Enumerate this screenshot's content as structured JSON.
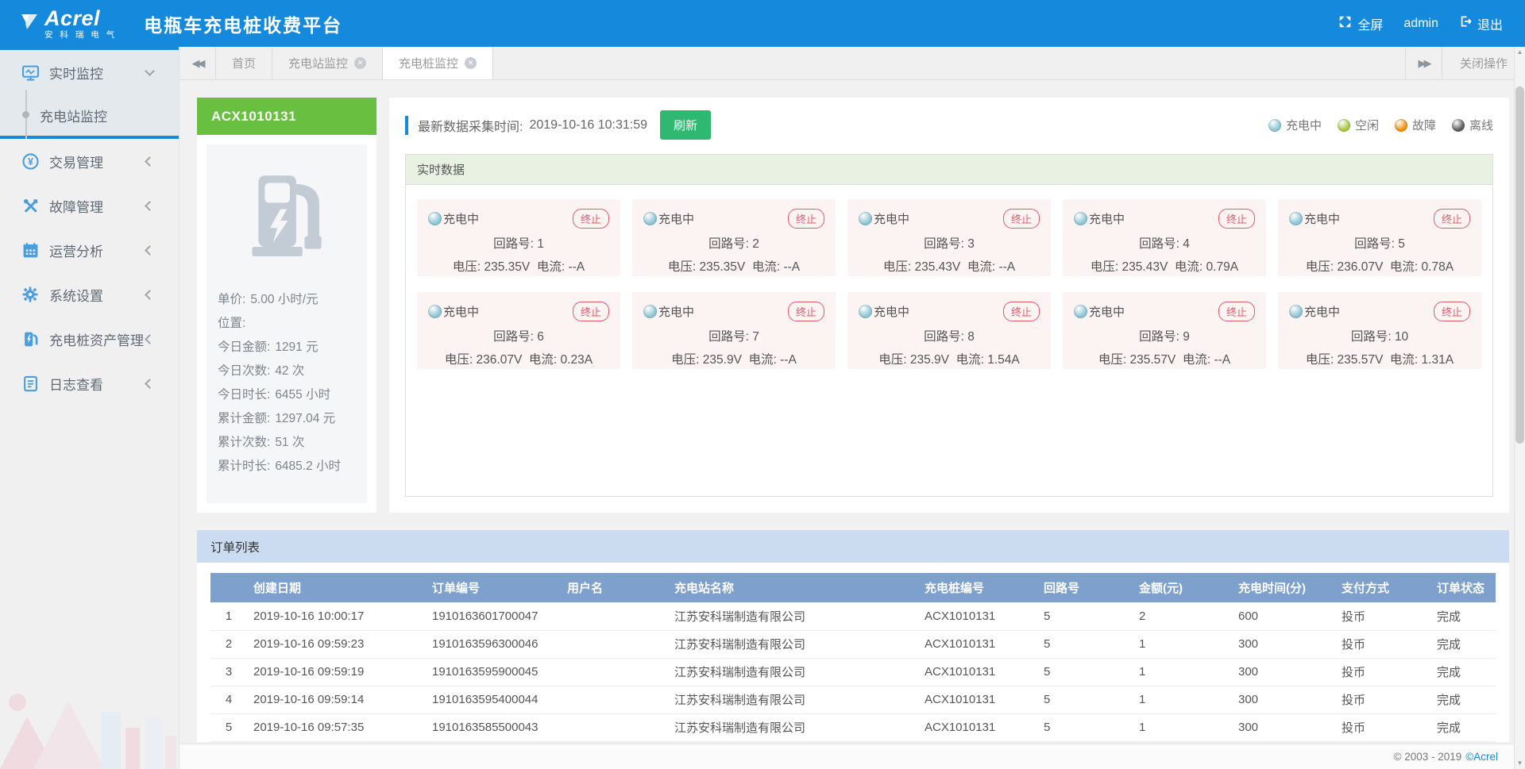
{
  "header": {
    "logo_main": "Acrel",
    "logo_sub": "安 科 瑞 电 气",
    "title": "电瓶车充电桩收费平台",
    "fullscreen_label": "全屏",
    "username": "admin",
    "logout_label": "退出"
  },
  "tabbar": {
    "tabs": [
      {
        "label": "首页",
        "closable": false,
        "active": false
      },
      {
        "label": "充电站监控",
        "closable": true,
        "active": false
      },
      {
        "label": "充电桩监控",
        "closable": true,
        "active": true
      }
    ],
    "close_ops_label": "关闭操作"
  },
  "sidebar": {
    "items": [
      {
        "label": "实时监控",
        "icon": "monitor-icon",
        "expanded": true,
        "children": [
          {
            "label": "充电站监控",
            "active": true
          }
        ]
      },
      {
        "label": "交易管理",
        "icon": "transaction-icon"
      },
      {
        "label": "故障管理",
        "icon": "fault-icon"
      },
      {
        "label": "运营分析",
        "icon": "analysis-icon"
      },
      {
        "label": "系统设置",
        "icon": "settings-icon"
      },
      {
        "label": "充电桩资产管理",
        "icon": "charging-asset-icon"
      },
      {
        "label": "日志查看",
        "icon": "log-icon"
      }
    ]
  },
  "station": {
    "id": "ACX1010131",
    "stats": [
      {
        "label": "单价:",
        "value": "5.00 小时/元"
      },
      {
        "label": "位置:",
        "value": ""
      },
      {
        "label": "今日金额:",
        "value": "1291 元"
      },
      {
        "label": "今日次数:",
        "value": "42 次"
      },
      {
        "label": "今日时长:",
        "value": "6455 小时"
      },
      {
        "label": "累计金额:",
        "value": "1297.04 元"
      },
      {
        "label": "累计次数:",
        "value": "51 次"
      },
      {
        "label": "累计时长:",
        "value": "6485.2 小时"
      }
    ]
  },
  "monitor": {
    "collect_time_label": "最新数据采集时间:",
    "collect_time": "2019-10-16 10:31:59",
    "refresh_label": "刷新",
    "panel_title": "实时数据",
    "status_label": "充电中",
    "terminate_label": "终止",
    "circuit_label": "回路号:",
    "voltage_label": "电压:",
    "current_label": "电流:",
    "legend": [
      {
        "label": "充电中",
        "color": "#8fc7d6"
      },
      {
        "label": "空闲",
        "color": "#a6ca44"
      },
      {
        "label": "故障",
        "color": "#f0930f"
      },
      {
        "label": "离线",
        "color": "#5f5f5f"
      }
    ],
    "circuits": [
      {
        "no": "1",
        "voltage": "235.35V",
        "current": "--A"
      },
      {
        "no": "2",
        "voltage": "235.35V",
        "current": "--A"
      },
      {
        "no": "3",
        "voltage": "235.43V",
        "current": "--A"
      },
      {
        "no": "4",
        "voltage": "235.43V",
        "current": "0.79A"
      },
      {
        "no": "5",
        "voltage": "236.07V",
        "current": "0.78A"
      },
      {
        "no": "6",
        "voltage": "236.07V",
        "current": "0.23A"
      },
      {
        "no": "7",
        "voltage": "235.9V",
        "current": "--A"
      },
      {
        "no": "8",
        "voltage": "235.9V",
        "current": "1.54A"
      },
      {
        "no": "9",
        "voltage": "235.57V",
        "current": "--A"
      },
      {
        "no": "10",
        "voltage": "235.57V",
        "current": "1.31A"
      }
    ]
  },
  "orders": {
    "panel_title": "订单列表",
    "columns": [
      "创建日期",
      "订单编号",
      "用户名",
      "充电站名称",
      "充电桩编号",
      "回路号",
      "金额(元)",
      "充电时间(分)",
      "支付方式",
      "订单状态"
    ],
    "rows": [
      [
        "1",
        "2019-10-16 10:00:17",
        "1910163601700047",
        "",
        "江苏安科瑞制造有限公司",
        "ACX1010131",
        "5",
        "2",
        "600",
        "投币",
        "完成"
      ],
      [
        "2",
        "2019-10-16 09:59:23",
        "1910163596300046",
        "",
        "江苏安科瑞制造有限公司",
        "ACX1010131",
        "5",
        "1",
        "300",
        "投币",
        "完成"
      ],
      [
        "3",
        "2019-10-16 09:59:19",
        "1910163595900045",
        "",
        "江苏安科瑞制造有限公司",
        "ACX1010131",
        "5",
        "1",
        "300",
        "投币",
        "完成"
      ],
      [
        "4",
        "2019-10-16 09:59:14",
        "1910163595400044",
        "",
        "江苏安科瑞制造有限公司",
        "ACX1010131",
        "5",
        "1",
        "300",
        "投币",
        "完成"
      ],
      [
        "5",
        "2019-10-16 09:57:35",
        "1910163585500043",
        "",
        "江苏安科瑞制造有限公司",
        "ACX1010131",
        "5",
        "1",
        "300",
        "投币",
        "完成"
      ]
    ]
  },
  "footer": {
    "copyright": "© 2003 - 2019",
    "brand": "©Acrel"
  },
  "colors": {
    "accent_blue": "#1589db",
    "station_green": "#68bf40",
    "refresh_green": "#2eb872",
    "card_charging_bg": "#fcf3f3",
    "terminate_red": "#e25b6a",
    "table_header_blue": "#7da0cd",
    "orders_header_blue": "#cbdcf0",
    "rt_header_green": "#e9f1e3"
  }
}
